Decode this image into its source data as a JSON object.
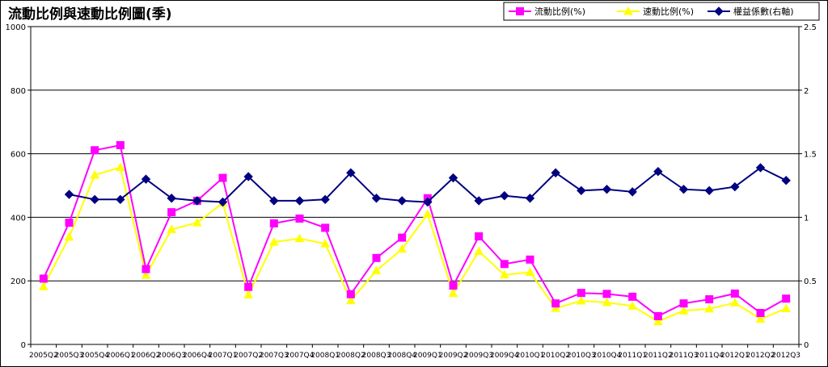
{
  "chart_data": {
    "type": "line",
    "title": "流動比例與速動比例圖(季)",
    "xlabel": "",
    "ylabel": "",
    "ylim": [
      0,
      1000
    ],
    "y2lim": [
      0,
      2.5
    ],
    "yticks": [
      "0",
      "200",
      "400",
      "600",
      "800",
      "1000"
    ],
    "y2ticks": [
      "0",
      "0.5",
      "1",
      "1.5",
      "2",
      "2.5"
    ],
    "grid": true,
    "legend_position": "top-right",
    "categories": [
      "2005Q2",
      "2005Q3",
      "2005Q4",
      "2006Q1",
      "2006Q2",
      "2006Q3",
      "2006Q4",
      "2007Q1",
      "2007Q2",
      "2007Q3",
      "2007Q4",
      "2008Q1",
      "2008Q2",
      "2008Q3",
      "2008Q4",
      "2009Q1",
      "2009Q2",
      "2009Q3",
      "2009Q4",
      "2010Q1",
      "2010Q2",
      "2010Q3",
      "2010Q4",
      "2011Q1",
      "2011Q2",
      "2011Q3",
      "2011Q4",
      "2012Q1",
      "2012Q2",
      "2012Q3"
    ],
    "series": [
      {
        "name": "流動比例(%)",
        "axis": "left",
        "color": "#ff00ff",
        "marker": "square",
        "values": [
          207,
          383,
          611,
          627,
          237,
          416,
          452,
          524,
          181,
          381,
          396,
          367,
          158,
          272,
          336,
          460,
          185,
          340,
          253,
          267,
          129,
          162,
          159,
          150,
          89,
          129,
          142,
          160,
          99,
          144
        ]
      },
      {
        "name": "速動比例(%)",
        "axis": "left",
        "color": "#ffff00",
        "marker": "triangle",
        "values": [
          182,
          338,
          533,
          557,
          218,
          362,
          383,
          445,
          156,
          322,
          333,
          317,
          138,
          232,
          300,
          410,
          161,
          293,
          219,
          227,
          114,
          137,
          132,
          121,
          72,
          106,
          112,
          131,
          80,
          113
        ]
      },
      {
        "name": "權益係數(右軸)",
        "axis": "right",
        "color": "#000080",
        "marker": "diamond",
        "values": [
          null,
          1.18,
          1.14,
          1.14,
          1.3,
          1.15,
          1.13,
          1.12,
          1.32,
          1.13,
          1.13,
          1.14,
          1.35,
          1.15,
          1.13,
          1.12,
          1.31,
          1.13,
          1.17,
          1.15,
          1.35,
          1.21,
          1.22,
          1.2,
          1.36,
          1.22,
          1.21,
          1.24,
          1.39,
          1.29
        ]
      }
    ]
  }
}
